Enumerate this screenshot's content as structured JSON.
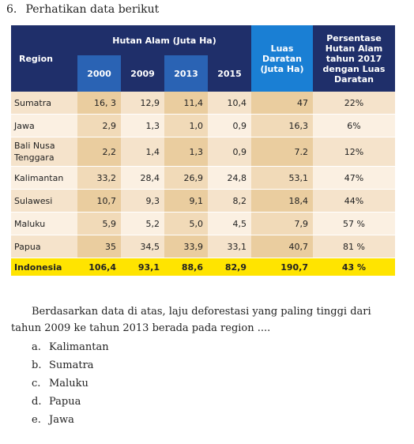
{
  "question": {
    "number": "6.",
    "heading": "Perhatikan data berikut",
    "text": "Berdasarkan data di atas, laju deforestasi yang paling tinggi dari tahun 2009 ke tahun 2013 berada pada region ...."
  },
  "table": {
    "header": {
      "region": "Region",
      "forest_group": "Hutan Alam (Juta Ha)",
      "years": [
        "2000",
        "2009",
        "2013",
        "2015"
      ],
      "land_area": "Luas Daratan (Juta Ha)",
      "percentage": "Persentase Hutan Alam tahun 2017 dengan Luas Daratan"
    },
    "rows": [
      {
        "region": "Sumatra",
        "y2000": "16, 3",
        "y2009": "12,9",
        "y2013": "11,4",
        "y2015": "10,4",
        "land": "47",
        "pct": "22%"
      },
      {
        "region": "Jawa",
        "y2000": "2,9",
        "y2009": "1,3",
        "y2013": "1,0",
        "y2015": "0,9",
        "land": "16,3",
        "pct": "6%"
      },
      {
        "region": "Bali Nusa Tenggara",
        "y2000": "2,2",
        "y2009": "1,4",
        "y2013": "1,3",
        "y2015": "0,9",
        "land": "7.2",
        "pct": "12%"
      },
      {
        "region": "Kalimantan",
        "y2000": "33,2",
        "y2009": "28,4",
        "y2013": "26,9",
        "y2015": "24,8",
        "land": "53,1",
        "pct": "47%"
      },
      {
        "region": "Sulawesi",
        "y2000": "10,7",
        "y2009": "9,3",
        "y2013": "9,1",
        "y2015": "8,2",
        "land": "18,4",
        "pct": "44%"
      },
      {
        "region": "Maluku",
        "y2000": "5,9",
        "y2009": "5,2",
        "y2013": "5,0",
        "y2015": "4,5",
        "land": "7,9",
        "pct": "57 %"
      },
      {
        "region": "Papua",
        "y2000": "35",
        "y2009": "34,5",
        "y2013": "33,9",
        "y2015": "33,1",
        "land": "40,7",
        "pct": "81 %"
      }
    ],
    "total": {
      "region": "Indonesia",
      "y2000": "106,4",
      "y2009": "93,1",
      "y2013": "88,6",
      "y2015": "82,9",
      "land": "190,7",
      "pct": "43 %"
    }
  },
  "options": [
    {
      "letter": "a.",
      "text": "Kalimantan"
    },
    {
      "letter": "b.",
      "text": "Sumatra"
    },
    {
      "letter": "c.",
      "text": "Maluku"
    },
    {
      "letter": "d.",
      "text": "Papua"
    },
    {
      "letter": "e.",
      "text": "Jawa"
    }
  ]
}
